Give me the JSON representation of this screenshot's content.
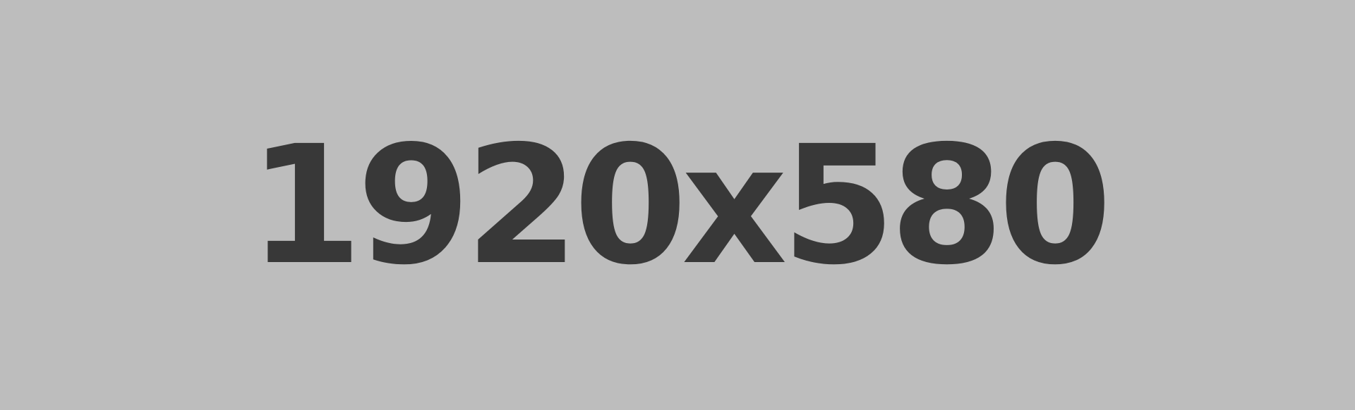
{
  "placeholder": {
    "label": "1920x580",
    "background_color": "#bdbdbd",
    "text_color": "#383838"
  }
}
